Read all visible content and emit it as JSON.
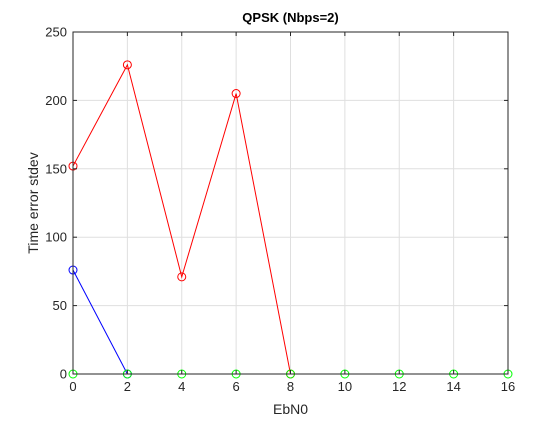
{
  "chart_data": {
    "type": "line",
    "title": "QPSK (Nbps=2)",
    "xlabel": "EbN0",
    "ylabel": "Time error stdev",
    "xlim": [
      0,
      16
    ],
    "ylim": [
      0,
      250
    ],
    "xticks": [
      "0",
      "2",
      "4",
      "6",
      "8",
      "10",
      "12",
      "14",
      "16"
    ],
    "yticks": [
      "0",
      "50",
      "100",
      "150",
      "200",
      "250"
    ],
    "grid": true,
    "marker": "circle",
    "series": [
      {
        "color": "#ff0000",
        "x": [
          0,
          2,
          4,
          6,
          8
        ],
        "y": [
          152,
          226,
          71,
          205,
          0
        ]
      },
      {
        "color": "#0000ff",
        "x": [
          0,
          2
        ],
        "y": [
          76,
          0
        ]
      },
      {
        "color": "#00ff00",
        "x": [
          0,
          2,
          4,
          6,
          8,
          10,
          12,
          14,
          16
        ],
        "y": [
          0,
          0,
          0,
          0,
          0,
          0,
          0,
          0,
          0
        ]
      }
    ]
  }
}
